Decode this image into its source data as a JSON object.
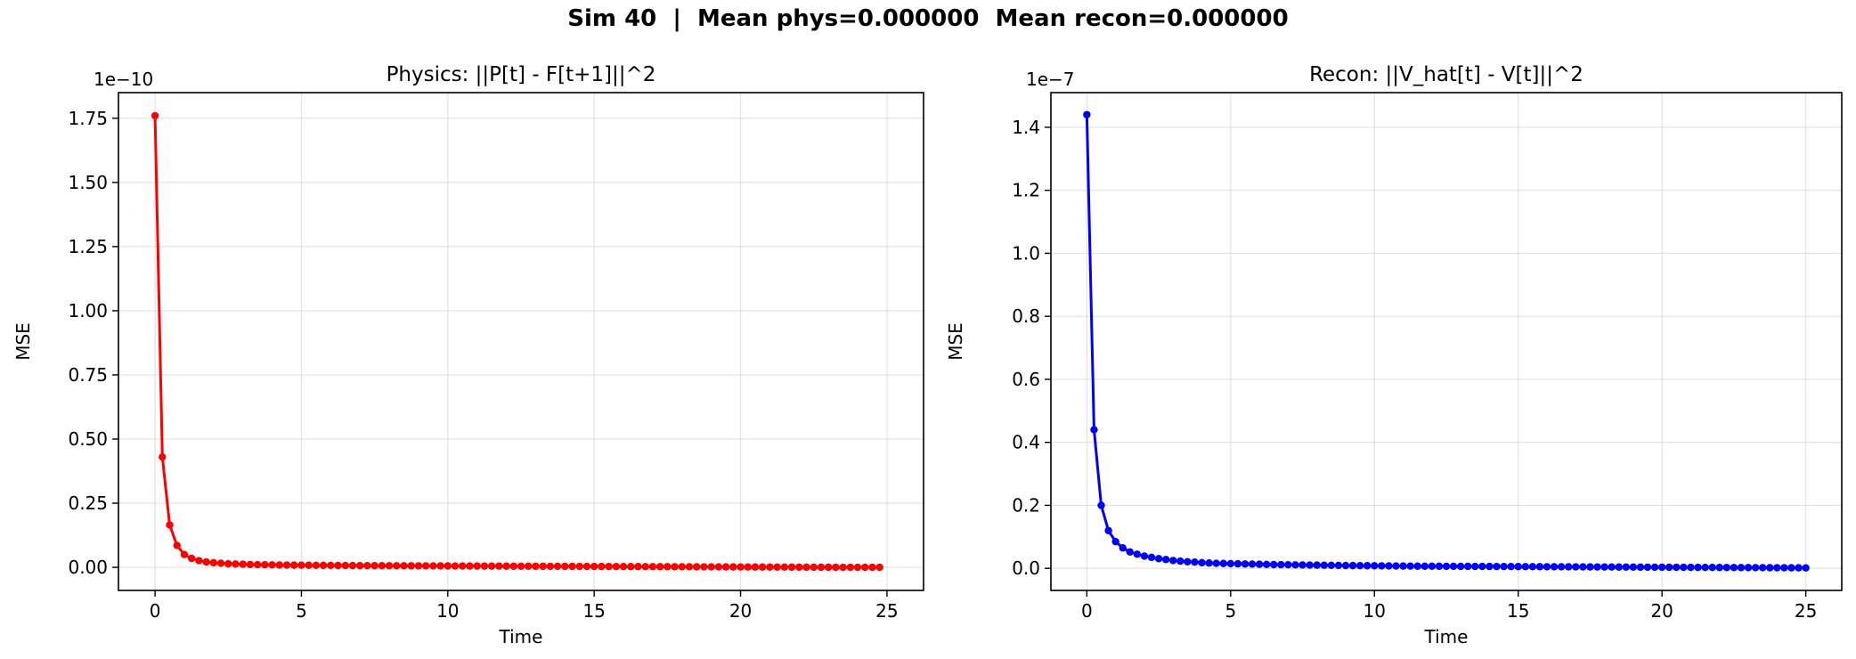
{
  "figure": {
    "suptitle": "Sim 40  |  Mean phys=0.000000  Mean recon=0.000000"
  },
  "chart_data": [
    {
      "type": "line",
      "title": "Physics: ||P[t] - F[t+1]||^2",
      "xlabel": "Time",
      "ylabel": "MSE",
      "offset_label": "1e−10",
      "xlim": [
        -1.25,
        26.25
      ],
      "ylim": [
        -0.09,
        1.85
      ],
      "xticks": [
        0,
        5,
        10,
        15,
        20,
        25
      ],
      "xtick_labels": [
        "0",
        "5",
        "10",
        "15",
        "20",
        "25"
      ],
      "yticks": [
        0,
        0.25,
        0.5,
        0.75,
        1.0,
        1.25,
        1.5,
        1.75
      ],
      "ytick_labels": [
        "0.00",
        "0.25",
        "0.50",
        "0.75",
        "1.00",
        "1.25",
        "1.50",
        "1.75"
      ],
      "grid": true,
      "color": "#ff0000",
      "series": [
        {
          "x": [
            0.0,
            0.25,
            0.5,
            0.75,
            1.0,
            1.25,
            1.5,
            1.75,
            2.0,
            2.25,
            2.5,
            2.75,
            3.0,
            3.25,
            3.5,
            3.75,
            4.0,
            4.25,
            4.5,
            4.75,
            5.0,
            5.25,
            5.5,
            5.75,
            6.0,
            6.25,
            6.5,
            6.75,
            7.0,
            7.25,
            7.5,
            7.75,
            8.0,
            8.25,
            8.5,
            8.75,
            9.0,
            9.25,
            9.5,
            9.75,
            10.0,
            10.25,
            10.5,
            10.75,
            11.0,
            11.25,
            11.5,
            11.75,
            12.0,
            12.25,
            12.5,
            12.75,
            13.0,
            13.25,
            13.5,
            13.75,
            14.0,
            14.25,
            14.5,
            14.75,
            15.0,
            15.25,
            15.5,
            15.75,
            16.0,
            16.25,
            16.5,
            16.75,
            17.0,
            17.25,
            17.5,
            17.75,
            18.0,
            18.25,
            18.5,
            18.75,
            19.0,
            19.25,
            19.5,
            19.75,
            20.0,
            20.25,
            20.5,
            20.75,
            21.0,
            21.25,
            21.5,
            21.75,
            22.0,
            22.25,
            22.5,
            22.75,
            23.0,
            23.25,
            23.5,
            23.75,
            24.0,
            24.25,
            24.5,
            24.75
          ],
          "y": [
            1.76,
            0.43,
            0.165,
            0.085,
            0.05,
            0.035,
            0.026,
            0.021,
            0.018,
            0.016,
            0.014,
            0.013,
            0.012,
            0.011,
            0.0105,
            0.01,
            0.0095,
            0.009,
            0.0088,
            0.0085,
            0.0082,
            0.008,
            0.0078,
            0.0076,
            0.0074,
            0.0072,
            0.007,
            0.0068,
            0.0066,
            0.0065,
            0.0064,
            0.0063,
            0.0062,
            0.0061,
            0.006,
            0.0059,
            0.0058,
            0.0057,
            0.0056,
            0.0055,
            0.0054,
            0.0053,
            0.0052,
            0.0051,
            0.005,
            0.0049,
            0.0048,
            0.0047,
            0.0046,
            0.0045,
            0.0044,
            0.0043,
            0.0042,
            0.0041,
            0.004,
            0.0039,
            0.0038,
            0.0037,
            0.0036,
            0.0035,
            0.0034,
            0.0033,
            0.0032,
            0.0031,
            0.003,
            0.0029,
            0.0028,
            0.0027,
            0.0026,
            0.0025,
            0.0024,
            0.0023,
            0.0022,
            0.0021,
            0.002,
            0.0019,
            0.0018,
            0.0017,
            0.0016,
            0.0015,
            0.0014,
            0.0013,
            0.0012,
            0.0011,
            0.001,
            0.0009,
            0.0008,
            0.0007,
            0.0006,
            0.0005,
            0.0004,
            0.0003,
            0.0002,
            0.00015,
            0.0001,
            0.0001,
            8e-05,
            6e-05,
            4e-05,
            2e-05
          ]
        }
      ]
    },
    {
      "type": "line",
      "title": "Recon: ||V_hat[t] - V[t]||^2",
      "xlabel": "Time",
      "ylabel": "MSE",
      "offset_label": "1e−7",
      "xlim": [
        -1.25,
        26.25
      ],
      "ylim": [
        -0.07,
        1.51
      ],
      "xticks": [
        0,
        5,
        10,
        15,
        20,
        25
      ],
      "xtick_labels": [
        "0",
        "5",
        "10",
        "15",
        "20",
        "25"
      ],
      "yticks": [
        0,
        0.2,
        0.4,
        0.6,
        0.8,
        1.0,
        1.2,
        1.4
      ],
      "ytick_labels": [
        "0.0",
        "0.2",
        "0.4",
        "0.6",
        "0.8",
        "1.0",
        "1.2",
        "1.4"
      ],
      "grid": true,
      "color": "#0000ff",
      "series": [
        {
          "x": [
            0.0,
            0.25,
            0.5,
            0.75,
            1.0,
            1.25,
            1.5,
            1.75,
            2.0,
            2.25,
            2.5,
            2.75,
            3.0,
            3.25,
            3.5,
            3.75,
            4.0,
            4.25,
            4.5,
            4.75,
            5.0,
            5.25,
            5.5,
            5.75,
            6.0,
            6.25,
            6.5,
            6.75,
            7.0,
            7.25,
            7.5,
            7.75,
            8.0,
            8.25,
            8.5,
            8.75,
            9.0,
            9.25,
            9.5,
            9.75,
            10.0,
            10.25,
            10.5,
            10.75,
            11.0,
            11.25,
            11.5,
            11.75,
            12.0,
            12.25,
            12.5,
            12.75,
            13.0,
            13.25,
            13.5,
            13.75,
            14.0,
            14.25,
            14.5,
            14.75,
            15.0,
            15.25,
            15.5,
            15.75,
            16.0,
            16.25,
            16.5,
            16.75,
            17.0,
            17.25,
            17.5,
            17.75,
            18.0,
            18.25,
            18.5,
            18.75,
            19.0,
            19.25,
            19.5,
            19.75,
            20.0,
            20.25,
            20.5,
            20.75,
            21.0,
            21.25,
            21.5,
            21.75,
            22.0,
            22.25,
            22.5,
            22.75,
            23.0,
            23.25,
            23.5,
            23.75,
            24.0,
            24.25,
            24.5,
            24.75,
            25.0
          ],
          "y": [
            1.44,
            0.44,
            0.2,
            0.12,
            0.085,
            0.065,
            0.052,
            0.045,
            0.039,
            0.035,
            0.031,
            0.028,
            0.025,
            0.023,
            0.021,
            0.02,
            0.018,
            0.017,
            0.016,
            0.0155,
            0.015,
            0.0145,
            0.014,
            0.0135,
            0.013,
            0.0125,
            0.012,
            0.0117,
            0.0114,
            0.0111,
            0.0108,
            0.0105,
            0.0102,
            0.0099,
            0.0096,
            0.0093,
            0.009,
            0.0088,
            0.0086,
            0.0084,
            0.0082,
            0.008,
            0.0078,
            0.0076,
            0.0074,
            0.0072,
            0.007,
            0.0069,
            0.0068,
            0.0067,
            0.0066,
            0.0065,
            0.0064,
            0.0063,
            0.0062,
            0.0061,
            0.006,
            0.0059,
            0.0058,
            0.0057,
            0.0056,
            0.0055,
            0.0054,
            0.0053,
            0.0052,
            0.0051,
            0.005,
            0.0049,
            0.0048,
            0.0047,
            0.0046,
            0.0045,
            0.0044,
            0.0043,
            0.0042,
            0.0041,
            0.004,
            0.0039,
            0.0038,
            0.0037,
            0.0036,
            0.0035,
            0.0034,
            0.0033,
            0.0032,
            0.0031,
            0.003,
            0.0029,
            0.0028,
            0.0027,
            0.0026,
            0.0025,
            0.0024,
            0.0023,
            0.0022,
            0.0021,
            0.002,
            0.0019,
            0.0018,
            0.0017,
            0.0016
          ]
        }
      ]
    }
  ]
}
